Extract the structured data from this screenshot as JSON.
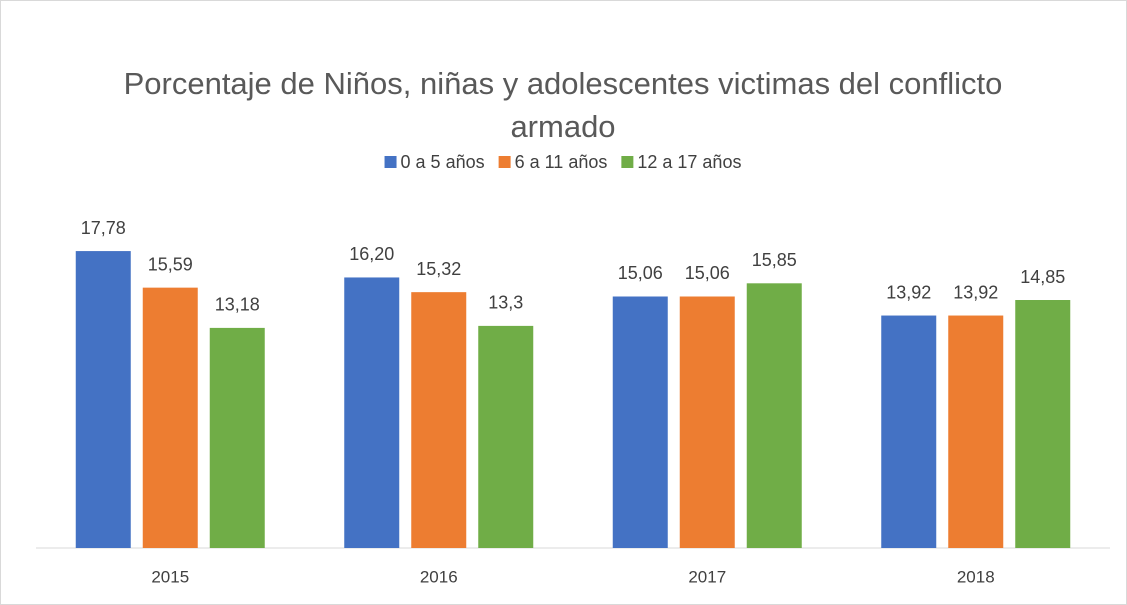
{
  "chart_data": {
    "type": "bar",
    "title": "Porcentaje de Niños, niñas y adolescentes victimas del conflicto armado",
    "categories": [
      "2015",
      "2016",
      "2017",
      "2018"
    ],
    "series": [
      {
        "name": "0 a 5 años",
        "color": "#4472c4",
        "values": [
          17.78,
          16.2,
          15.06,
          13.92
        ],
        "value_labels": [
          "17,78",
          "16,20",
          "15,06",
          "13,92"
        ]
      },
      {
        "name": "6 a 11 años",
        "color": "#ed7d31",
        "values": [
          15.59,
          15.32,
          15.06,
          13.92
        ],
        "value_labels": [
          "15,59",
          "15,32",
          "15,06",
          "13,92"
        ]
      },
      {
        "name": "12 a 17 años",
        "color": "#70ad47",
        "values": [
          13.18,
          13.3,
          15.85,
          14.85
        ],
        "value_labels": [
          "13,18",
          "13,3",
          "15,85",
          "14,85"
        ]
      }
    ],
    "ylim": [
      0,
      20
    ],
    "legend": "top"
  }
}
